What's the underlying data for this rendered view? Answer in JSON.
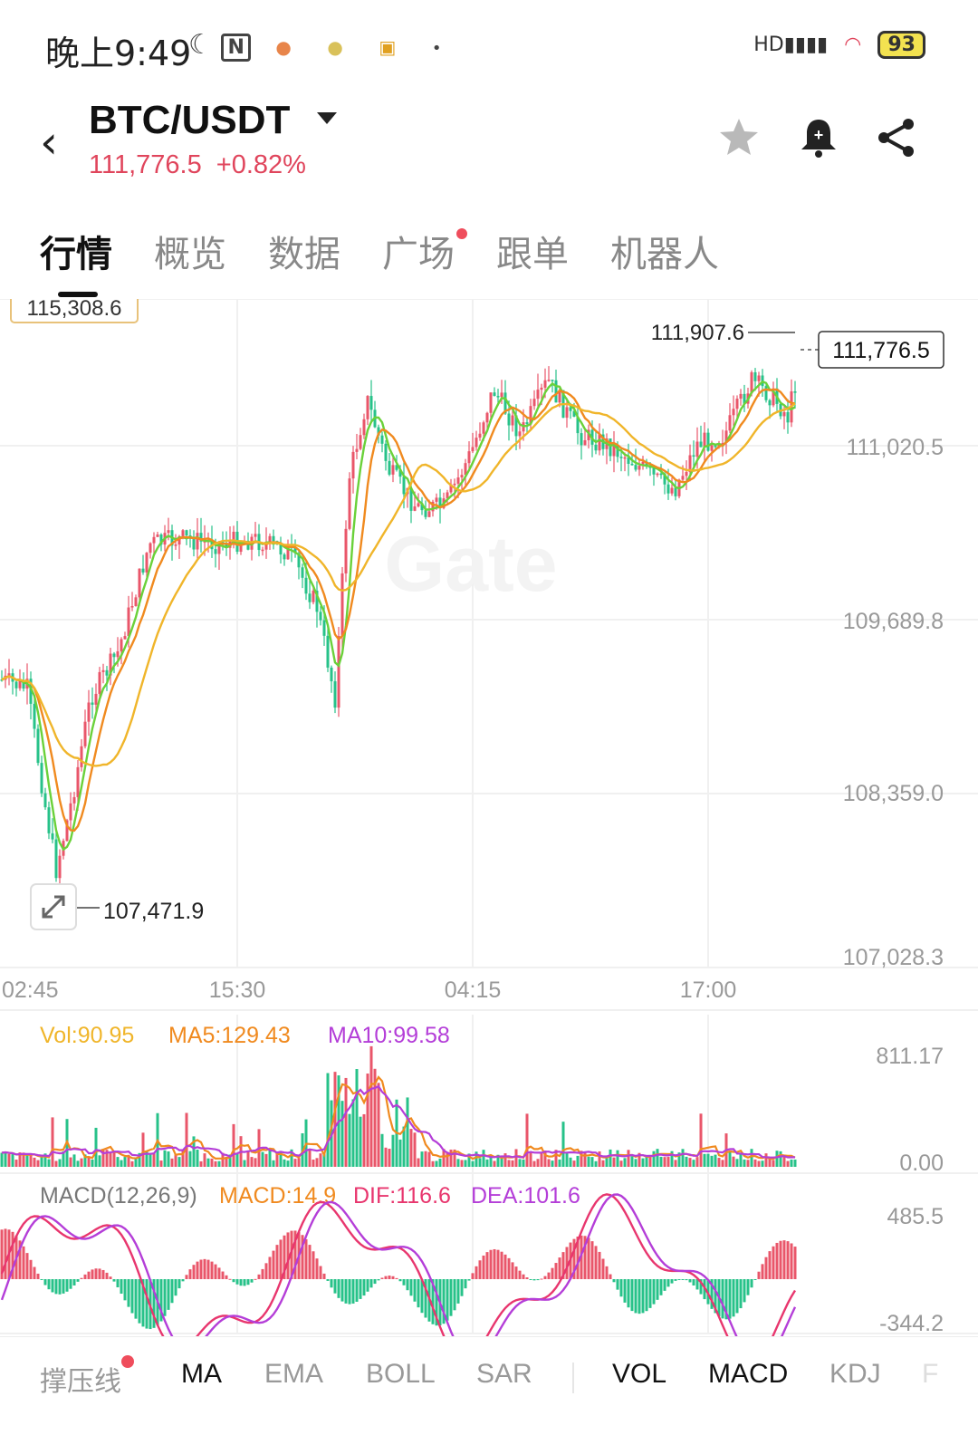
{
  "status_bar": {
    "time": "晚上9:49",
    "icons": [
      "moon-icon",
      "nfc-icon",
      "app-notification-icon",
      "app-notification-icon",
      "tv-icon",
      "dot"
    ],
    "battery": "93"
  },
  "header": {
    "pair": "BTC/USDT",
    "price": "111,776.5",
    "change": "+0.82%",
    "price_color": "#e0455c"
  },
  "tabs": [
    {
      "label": "行情",
      "active": true
    },
    {
      "label": "概览"
    },
    {
      "label": "数据"
    },
    {
      "label": "广场",
      "badge": true
    },
    {
      "label": "跟单"
    },
    {
      "label": "机器人"
    }
  ],
  "chart_data": [
    {
      "type": "candlestick",
      "x_ticks": [
        "02:45",
        "15:30",
        "04:15",
        "17:00"
      ],
      "y_ticks": [
        "111,020.5",
        "109,689.8",
        "108,359.0",
        "107,028.3"
      ],
      "top_label": "115,308.6",
      "high_marker": "111,907.6",
      "low_marker": "107,471.9",
      "current_price": "111,776.5",
      "watermark": "Gate",
      "up_color": "#e9566a",
      "down_color": "#27c289",
      "ma_colors": [
        "#6ad13a",
        "#f08a1f",
        "#f0b52a"
      ]
    },
    {
      "type": "bar",
      "name": "volume",
      "legend": {
        "vol": "Vol:90.95",
        "ma5": "MA5:129.43",
        "ma10": "MA10:99.58"
      },
      "y_ticks": [
        "811.17",
        "0.00"
      ],
      "legend_colors": [
        "#f0b52a",
        "#f08a1f",
        "#b43ed8"
      ]
    },
    {
      "type": "bar",
      "name": "macd",
      "legend": {
        "title": "MACD(12,26,9)",
        "macd": "MACD:14.9",
        "dif": "DIF:116.6",
        "dea": "DEA:101.6"
      },
      "y_ticks": [
        "485.5",
        "-344.2"
      ],
      "legend_colors": [
        "#777",
        "#f08a1f",
        "#e8366e",
        "#b43ed8"
      ]
    }
  ],
  "indicators": [
    {
      "label": "撑压线",
      "badge": true
    },
    {
      "label": "MA",
      "on": true
    },
    {
      "label": "EMA"
    },
    {
      "label": "BOLL"
    },
    {
      "label": "SAR"
    },
    {
      "label": "VOL",
      "on": true
    },
    {
      "label": "MACD",
      "on": true
    },
    {
      "label": "KDJ"
    },
    {
      "label": "F"
    }
  ]
}
